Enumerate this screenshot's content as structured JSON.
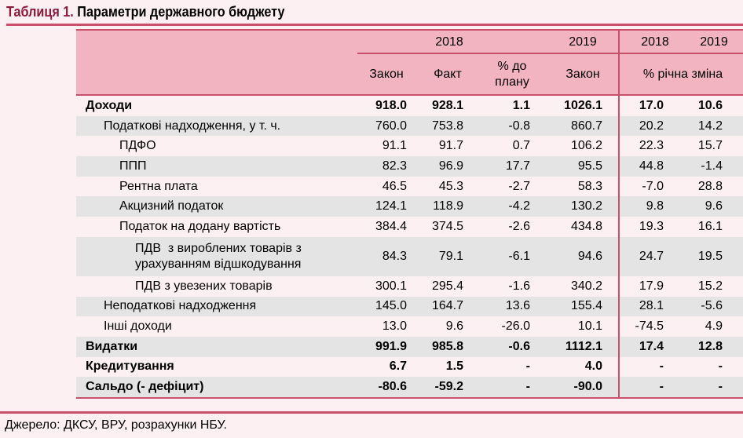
{
  "title": {
    "number": "Таблиця 1.",
    "text": "Параметри державного бюджету"
  },
  "header": {
    "year_2018": "2018",
    "year_2019": "2019",
    "change_2018": "2018",
    "change_2019": "2019",
    "col_law_2018": "Закон",
    "col_fact_2018": "Факт",
    "col_pct_plan_1": "% до",
    "col_pct_plan_2": "плану",
    "col_law_2019": "Закон",
    "col_annual_change": "% річна зміна"
  },
  "rows": [
    {
      "label": "Доходи",
      "level": 0,
      "bold": true,
      "values": [
        "918.0",
        "928.1",
        "1.1",
        "1026.1",
        "17.0",
        "10.6"
      ]
    },
    {
      "label": "Податкові надходження, у т. ч.",
      "level": 1,
      "values": [
        "760.0",
        "753.8",
        "-0.8",
        "860.7",
        "20.2",
        "14.2"
      ]
    },
    {
      "label": "ПДФО",
      "level": 2,
      "values": [
        "91.1",
        "91.7",
        "0.7",
        "106.2",
        "22.3",
        "15.7"
      ]
    },
    {
      "label": "ППП",
      "level": 2,
      "values": [
        "82.3",
        "96.9",
        "17.7",
        "95.5",
        "44.8",
        "-1.4"
      ]
    },
    {
      "label": "Рентна плата",
      "level": 2,
      "values": [
        "46.5",
        "45.3",
        "-2.7",
        "58.3",
        "-7.0",
        "28.8"
      ]
    },
    {
      "label": "Акцизний податок",
      "level": 2,
      "values": [
        "124.1",
        "118.9",
        "-4.2",
        "130.2",
        "9.8",
        "9.6"
      ]
    },
    {
      "label": "Податок на додану вартість",
      "level": 2,
      "values": [
        "384.4",
        "374.5",
        "-2.6",
        "434.8",
        "19.3",
        "16.1"
      ]
    },
    {
      "label": "ПДВ  з вироблених товарів з",
      "label2": "урахуванням відшкодування",
      "level": 3,
      "values": [
        "84.3",
        "79.1",
        "-6.1",
        "94.6",
        "24.7",
        "19.5"
      ]
    },
    {
      "label": "ПДВ з увезених товарів",
      "level": 3,
      "values": [
        "300.1",
        "295.4",
        "-1.6",
        "340.2",
        "17.9",
        "15.2"
      ]
    },
    {
      "label": "Неподаткові надходження",
      "level": 1,
      "values": [
        "145.0",
        "164.7",
        "13.6",
        "155.4",
        "28.1",
        "-5.6"
      ]
    },
    {
      "label": "Інші доходи",
      "level": 1,
      "values": [
        "13.0",
        "9.6",
        "-26.0",
        "10.1",
        "-74.5",
        "4.9"
      ]
    },
    {
      "label": "Видатки",
      "level": 0,
      "bold": true,
      "values": [
        "991.9",
        "985.8",
        "-0.6",
        "1112.1",
        "17.4",
        "12.8"
      ]
    },
    {
      "label": "Кредитування",
      "level": 0,
      "bold": true,
      "values": [
        "6.7",
        "1.5",
        "-",
        "4.0",
        "-",
        "-"
      ]
    },
    {
      "label": "Сальдо (- дефіцит)",
      "level": 0,
      "bold": true,
      "values": [
        "-80.6",
        "-59.2",
        "-",
        "-90.0",
        "-",
        "-"
      ]
    }
  ],
  "footer": "Джерело: ДКСУ, ВРУ, розрахунки НБУ.",
  "colors": {
    "accent": "#c8506a",
    "header_bg": "#f2b4c0",
    "title_number": "#8b1a3a",
    "stripe": "#e4e4e4",
    "page_bg": "#fdf0f2"
  }
}
